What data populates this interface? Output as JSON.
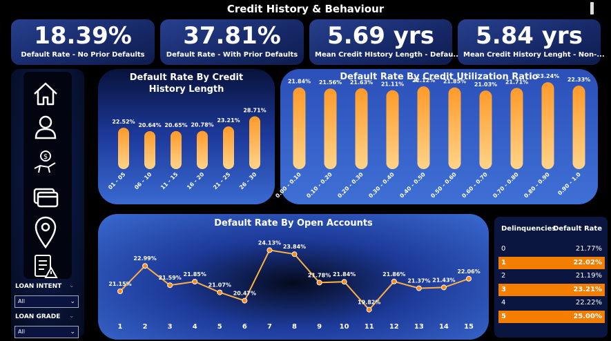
{
  "title": "Credit History & Behaviour",
  "kpis": [
    {
      "value": "18.39%",
      "label": "Default Rate - No Prior Defaults"
    },
    {
      "value": "37.81%",
      "label": "Default Rate - With Prior Defaults"
    },
    {
      "value": "5.69 yrs",
      "label": "Mean Credit HIstory Length - Defau..."
    },
    {
      "value": "5.84 yrs",
      "label": "Mean Credit History Lenght - Non-..."
    }
  ],
  "nav": [
    "home-icon",
    "user-icon",
    "money-hand-icon",
    "credit-cards-icon",
    "location-pin-icon",
    "risk-clipboard-icon"
  ],
  "filters": [
    {
      "label": "LOAN INTENT",
      "value": "All"
    },
    {
      "label": "LOAN GRADE",
      "value": "All"
    }
  ],
  "colors": {
    "bar_top": "#ff9a2a",
    "bar_bottom": "#ffd48a",
    "line": "#ffb040",
    "highlight": "#f37e00"
  },
  "chart_data": [
    {
      "type": "bar",
      "title": "Default Rate By Credit History Length",
      "categories": [
        "01 - 05",
        "06 - 10",
        "11 - 15",
        "16 - 20",
        "21 - 25",
        "26 - 30"
      ],
      "values": [
        22.52,
        20.64,
        20.65,
        20.78,
        23.21,
        28.71
      ],
      "labels": [
        "22.52%",
        "20.64%",
        "20.65%",
        "20.78%",
        "23.21%",
        "28.71%"
      ],
      "ylim": [
        0,
        30
      ]
    },
    {
      "type": "bar",
      "title": "Default Rate By Credit Utilization Ratio",
      "categories": [
        "0.00 - 0.10",
        "0.10 - 0.20",
        "0.20 - 0.30",
        "0.30 - 0.40",
        "0.40 - 0.50",
        "0.50 - 0.60",
        "0.60 - 0.70",
        "0.70 - 0.80",
        "0.80 - 0.90",
        "0.90 - 1.0"
      ],
      "values": [
        21.84,
        21.56,
        21.63,
        21.11,
        22.12,
        21.85,
        21.03,
        21.71,
        23.24,
        22.33
      ],
      "labels": [
        "21.84%",
        "21.56%",
        "21.63%",
        "21.11%",
        "22.12%",
        "21.85%",
        "21.03%",
        "21.71%",
        "23.24%",
        "22.33%"
      ],
      "ylim": [
        0,
        24
      ]
    },
    {
      "type": "line",
      "title": "Default Rate By Open Accounts",
      "categories": [
        "1",
        "2",
        "3",
        "4",
        "5",
        "6",
        "7",
        "8",
        "9",
        "10",
        "11",
        "12",
        "13",
        "14",
        "15"
      ],
      "values": [
        21.15,
        22.99,
        21.59,
        21.85,
        21.07,
        20.47,
        24.13,
        23.84,
        21.78,
        21.84,
        19.82,
        21.86,
        21.37,
        21.43,
        22.06
      ],
      "labels": [
        "21.15%",
        "22.99%",
        "21.59%",
        "21.85%",
        "21.07%",
        "20.47%",
        "24.13%",
        "23.84%",
        "21.78%",
        "21.84%",
        "19.82%",
        "21.86%",
        "21.37%",
        "21.43%",
        "22.06%"
      ],
      "ylim": [
        19.5,
        24.5
      ]
    }
  ],
  "delinquency_table": {
    "headers": [
      "Delinquencies",
      "Default Rate"
    ],
    "rows": [
      {
        "k": "0",
        "v": "21.77%",
        "highlight": false
      },
      {
        "k": "1",
        "v": "22.02%",
        "highlight": true
      },
      {
        "k": "2",
        "v": "21.19%",
        "highlight": false
      },
      {
        "k": "3",
        "v": "23.21%",
        "highlight": true
      },
      {
        "k": "4",
        "v": "22.22%",
        "highlight": false
      },
      {
        "k": "5",
        "v": "25.00%",
        "highlight": true
      }
    ]
  }
}
